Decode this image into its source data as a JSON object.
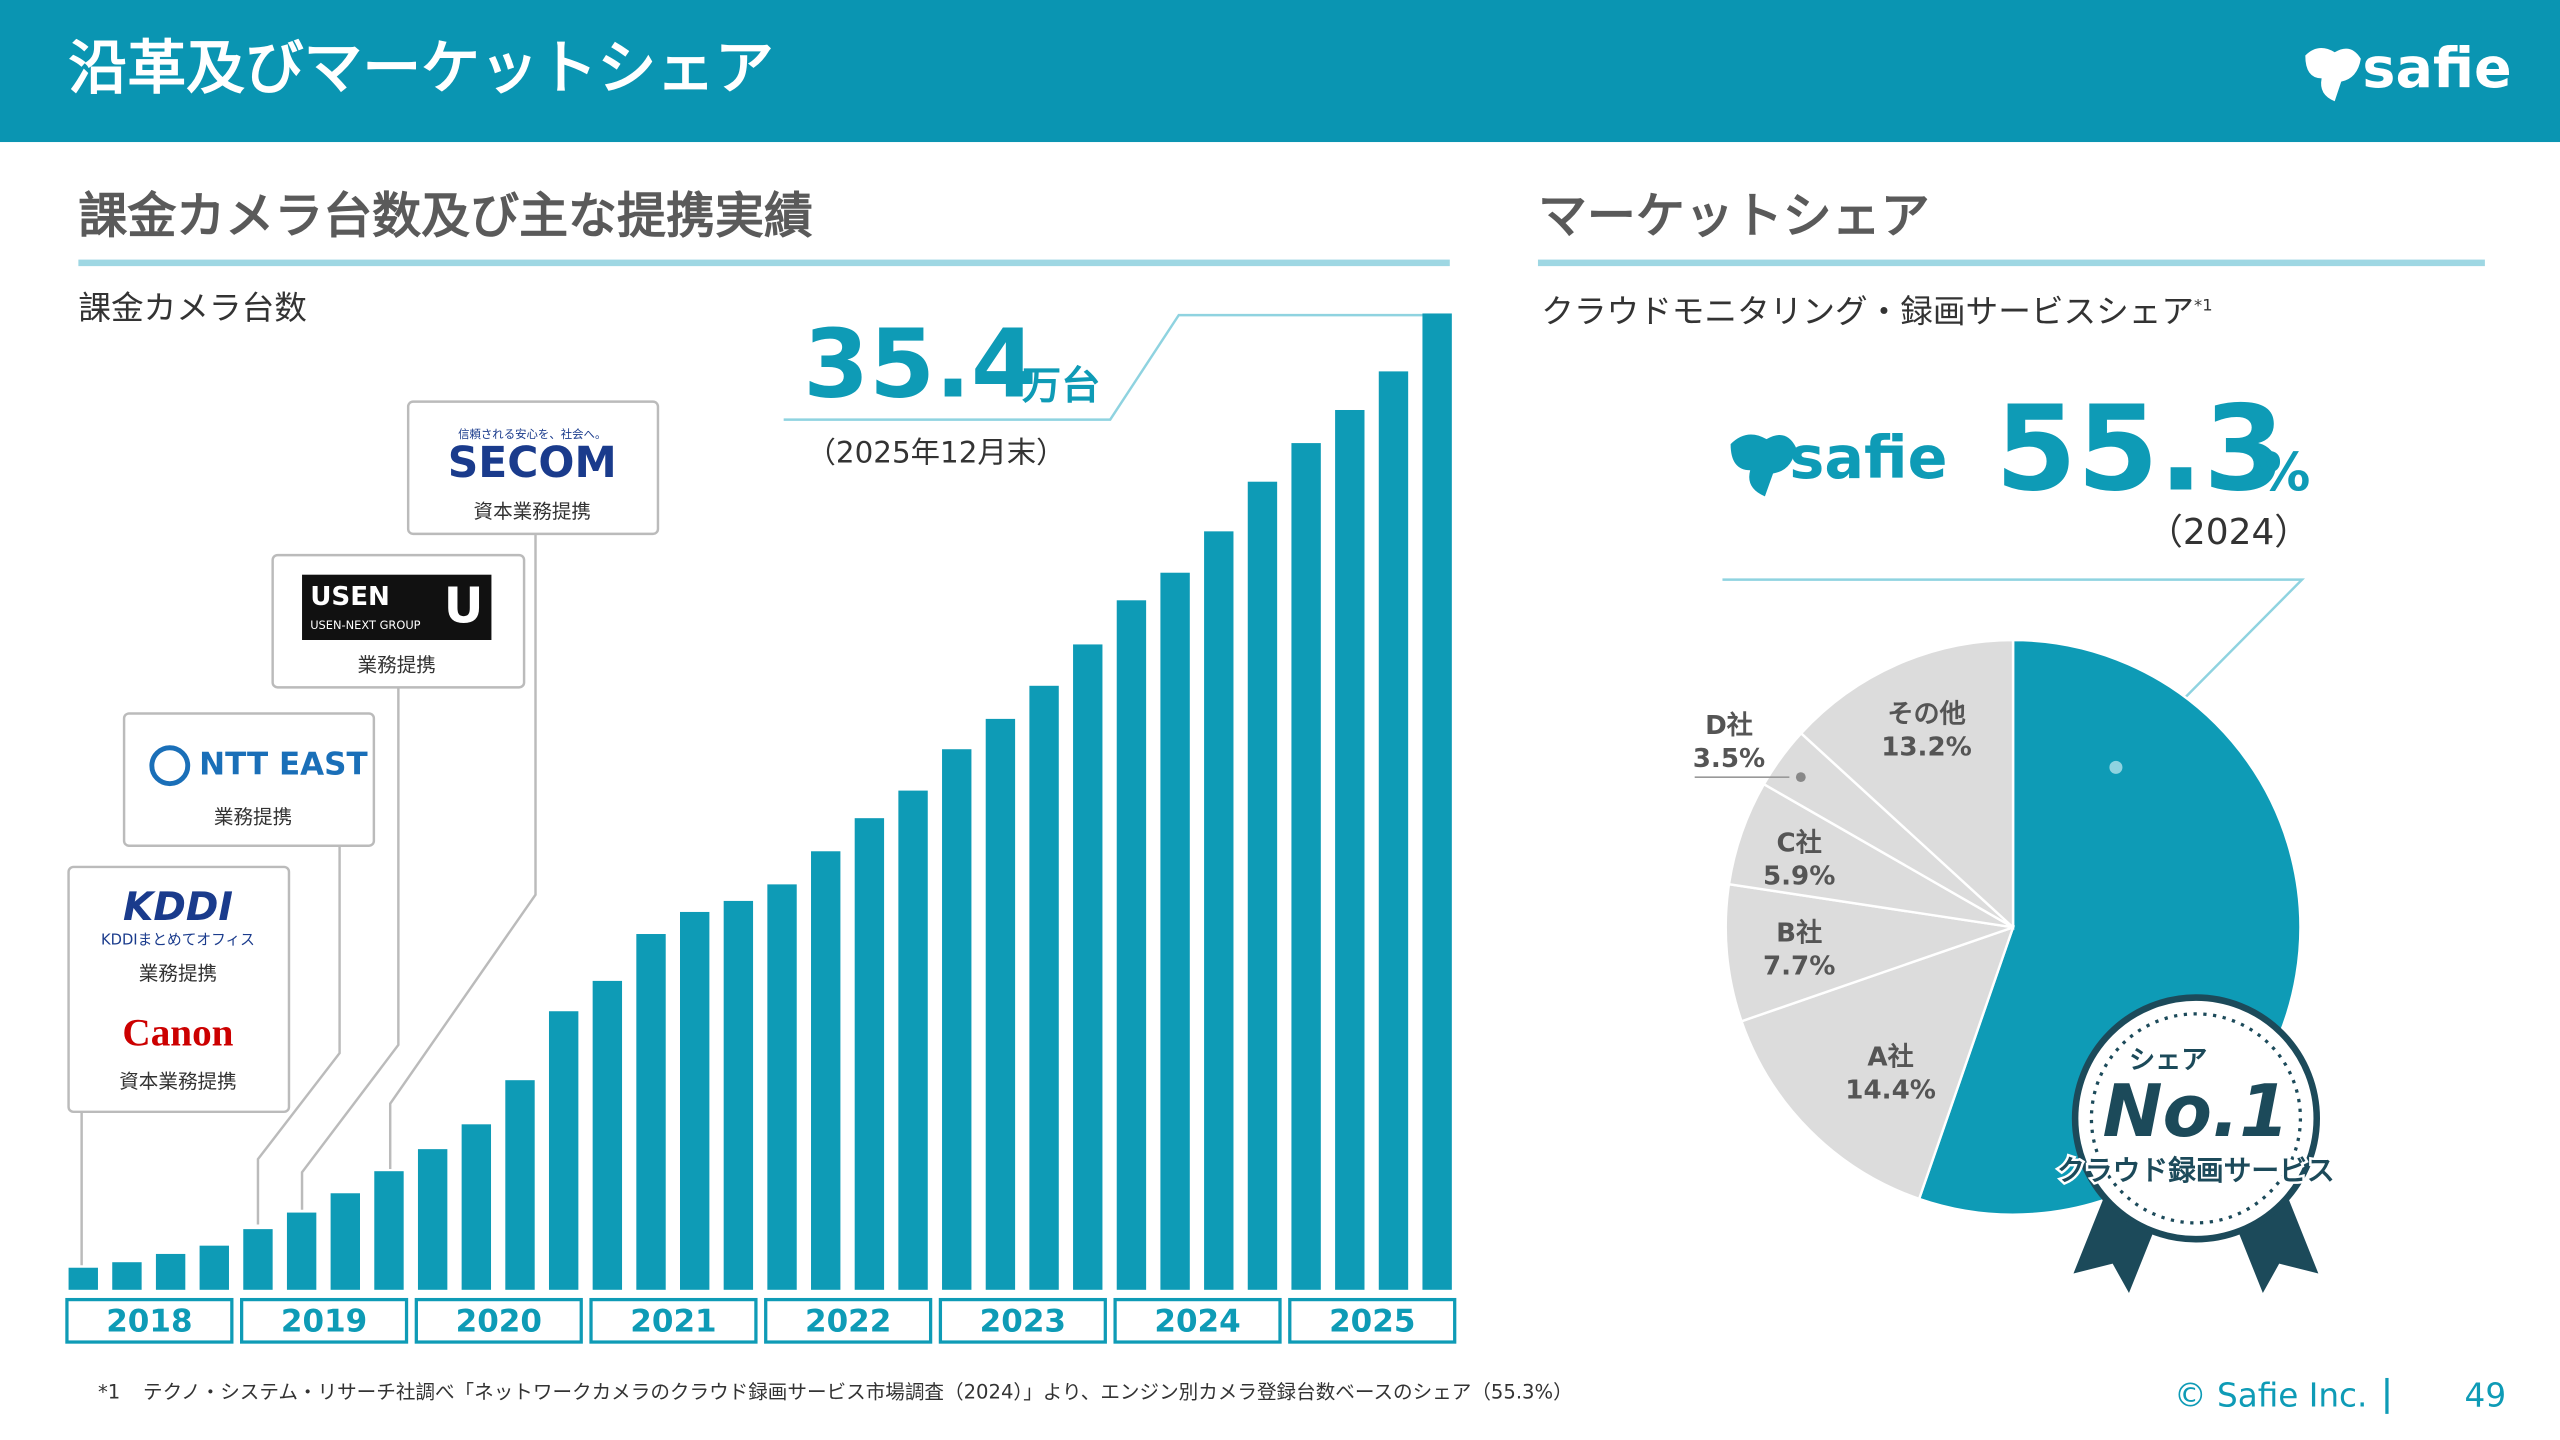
{
  "header": {
    "title": "沿革及びマーケットシェア",
    "logo": "safie"
  },
  "chart_data": [
    {
      "type": "bar",
      "title": "課金カメラ台数及び主な提携実績",
      "subtitle": "課金カメラ台数",
      "values": [
        0.8,
        1.0,
        1.3,
        1.6,
        2.2,
        2.8,
        3.5,
        4.3,
        5.1,
        6.0,
        7.6,
        10.1,
        11.2,
        12.9,
        13.7,
        14.1,
        14.7,
        15.9,
        17.1,
        18.1,
        19.6,
        20.7,
        21.9,
        23.4,
        25.0,
        26.0,
        27.5,
        29.3,
        30.7,
        31.9,
        33.3,
        35.4
      ],
      "color": "#0e9bb6",
      "groups": [
        "2018",
        "2019",
        "2020",
        "2021",
        "2022",
        "2023",
        "2024",
        "2025"
      ],
      "unit": "万台",
      "annotation": "（2025年12月末）",
      "partners": [
        {
          "logo": "Canon",
          "note": "資本業務提携"
        },
        {
          "logo": "KDDI",
          "logo_sub": "KDDIまとめてオフィス",
          "note": "業務提携"
        },
        {
          "logo": "NTT EAST",
          "note": "業務提携"
        },
        {
          "logo": "USEN",
          "logo_sub": "USEN-NEXT GROUP",
          "logo_mark": "U",
          "note": "業務提携"
        },
        {
          "logo": "SECOM",
          "logo_sub": "信頼される安心を、社会へ。",
          "note": "資本業務提携"
        }
      ]
    },
    {
      "type": "pie",
      "title": "マーケットシェア",
      "subtitle": "クラウドモニタリング・録画サービスシェア",
      "footnote_mark": "*1",
      "categories": [
        "safie",
        "A社",
        "B社",
        "C社",
        "D社",
        "その他"
      ],
      "values": [
        55.3,
        14.4,
        7.7,
        5.9,
        3.5,
        13.2
      ],
      "unit": "%",
      "colors": [
        "#0e9bb6",
        "#dcdcdc",
        "#dcdcdc",
        "#dcdcdc",
        "#dcdcdc",
        "#dcdcdc"
      ],
      "year_label": "（2024）",
      "badge": {
        "top": "シェア",
        "main": "No.1",
        "bottom": "クラウド録画サービス"
      }
    }
  ],
  "footnote": {
    "mark": "*1",
    "text": "テクノ・システム・リサーチ社調べ「ネットワークカメラのクラウド録画サービス市場調査（2024）」より、エンジン別カメラ登録台数ベースのシェア（55.3%）"
  },
  "footer": {
    "copyright": "© Safie Inc.",
    "page": "49"
  }
}
